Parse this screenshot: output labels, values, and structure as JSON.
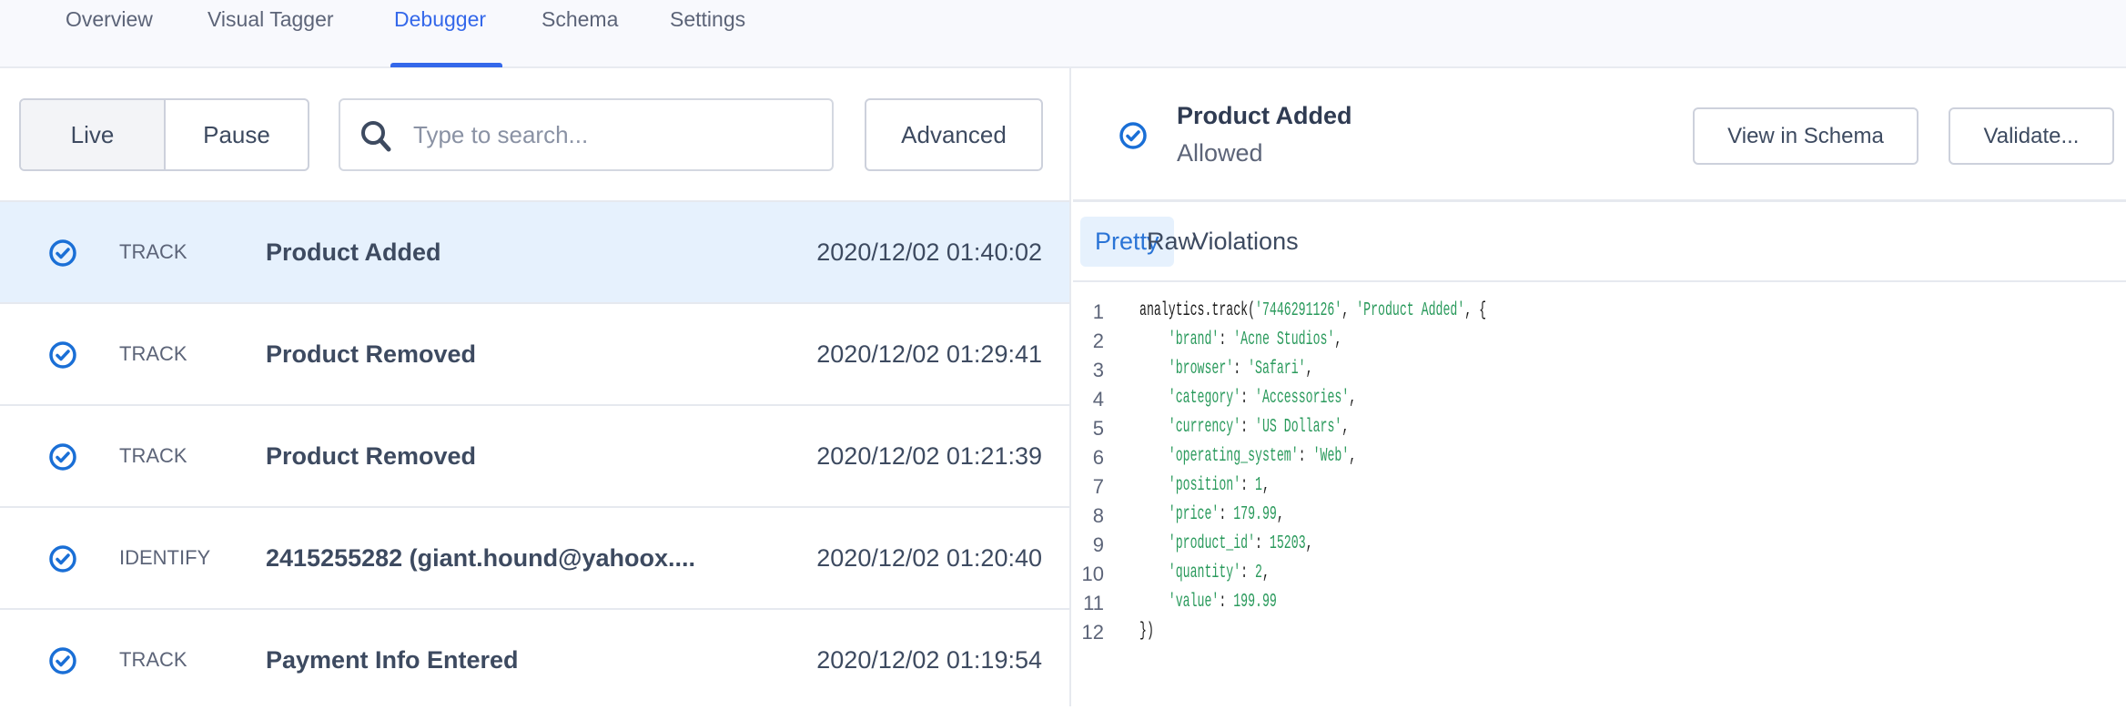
{
  "nav": {
    "tabs": [
      "Overview",
      "Visual Tagger",
      "Debugger",
      "Schema",
      "Settings"
    ],
    "active": "Debugger",
    "accent": "#3468ea"
  },
  "controls": {
    "live_label": "Live",
    "pause_label": "Pause",
    "search_placeholder": "Type to search...",
    "search_value": "",
    "advanced_label": "Advanced"
  },
  "events": [
    {
      "icon": "check-circle-icon",
      "type": "TRACK",
      "name": "Product Added",
      "time": "2020/12/02 01:40:02",
      "selected": true
    },
    {
      "icon": "check-circle-icon",
      "type": "TRACK",
      "name": "Product Removed",
      "time": "2020/12/02 01:29:41"
    },
    {
      "icon": "check-circle-icon",
      "type": "TRACK",
      "name": "Product Removed",
      "time": "2020/12/02 01:21:39"
    },
    {
      "icon": "check-circle-icon",
      "type": "IDENTIFY",
      "name": "2415255282 (giant.hound@yahoox....",
      "time": "2020/12/02 01:20:40"
    },
    {
      "icon": "check-circle-icon",
      "type": "TRACK",
      "name": "Payment Info Entered",
      "time": "2020/12/02 01:19:54"
    }
  ],
  "detail": {
    "title": "Product Added",
    "status": "Allowed",
    "view_schema_label": "View in Schema",
    "validate_label": "Validate...",
    "tabs": [
      "Pretty",
      "Raw",
      "Violations"
    ],
    "active_tab": "Pretty",
    "code": {
      "line_numbers": [
        "1",
        "2",
        "3",
        "4",
        "5",
        "6",
        "7",
        "8",
        "9",
        "10",
        "11",
        "12"
      ],
      "call": "analytics.track(",
      "user_id": "'7446291126'",
      "event": "'Product Added'",
      "properties": [
        {
          "key": "'brand'",
          "value": "'Acne Studios'"
        },
        {
          "key": "'browser'",
          "value": "'Safari'"
        },
        {
          "key": "'category'",
          "value": "'Accessories'"
        },
        {
          "key": "'currency'",
          "value": "'US Dollars'"
        },
        {
          "key": "'operating_system'",
          "value": "'Web'"
        },
        {
          "key": "'position'",
          "value": "1"
        },
        {
          "key": "'price'",
          "value": "179.99"
        },
        {
          "key": "'product_id'",
          "value": "15203"
        },
        {
          "key": "'quantity'",
          "value": "2"
        },
        {
          "key": "'value'",
          "value": "199.99"
        }
      ],
      "close": "})"
    }
  }
}
